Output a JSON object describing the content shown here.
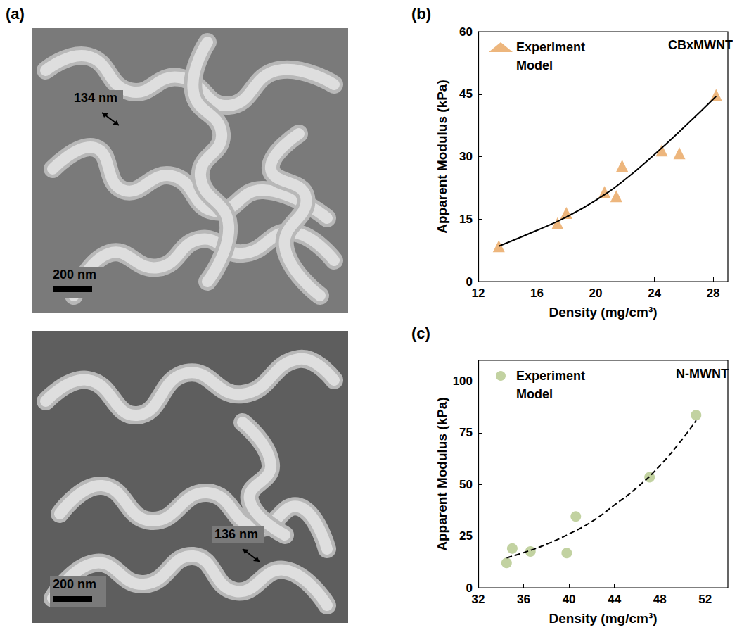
{
  "panels": [
    {
      "panel_label": "(a)",
      "images": [
        {
          "annotation": "134 nm",
          "scale_bar": "200 nm"
        },
        {
          "annotation": "136 nm",
          "scale_bar": "200 nm"
        }
      ]
    }
  ],
  "chart_data": [
    {
      "panel_label": "(b)",
      "type": "scatter",
      "annotation": "CBxMWNT",
      "x_label": "Density (mg/cm³)",
      "y_label": "Apparent Modulus (kPa)",
      "xlim": [
        12,
        29
      ],
      "xticks": [
        12,
        16,
        20,
        24,
        28
      ],
      "ylim": [
        0,
        60
      ],
      "yticks": [
        0,
        15,
        30,
        45,
        60
      ],
      "grid": false,
      "legend": "top-left",
      "series": [
        {
          "name": "Experiment",
          "type": "scatter",
          "marker": "triangle",
          "color": "#e8a45c",
          "x": [
            13.4,
            17.4,
            18.0,
            20.6,
            21.4,
            21.8,
            24.5,
            25.7,
            28.2
          ],
          "values": [
            8.5,
            14,
            16.5,
            21.5,
            20.5,
            27.8,
            31.5,
            30.8,
            44.8
          ]
        },
        {
          "name": "Model",
          "type": "line",
          "line_style": "solid",
          "color": "#000000",
          "x": [
            13.4,
            16,
            18,
            20,
            22,
            24,
            26,
            28.2
          ],
          "values": [
            8.5,
            12.3,
            15.5,
            19.5,
            24.5,
            30.5,
            37,
            44.5
          ]
        }
      ]
    },
    {
      "panel_label": "(c)",
      "type": "scatter",
      "annotation": "N-MWNT",
      "x_label": "Density (mg/cm³)",
      "y_label": "Apparent Modulus (kPa)",
      "xlim": [
        32,
        54
      ],
      "xticks": [
        32,
        36,
        40,
        44,
        48,
        52
      ],
      "ylim": [
        0,
        110
      ],
      "yticks": [
        0,
        25,
        50,
        75,
        100
      ],
      "grid": false,
      "legend": "top-left",
      "series": [
        {
          "name": "Experiment",
          "type": "scatter",
          "marker": "circle",
          "color": "#b3c78a",
          "x": [
            34.5,
            35.0,
            36.6,
            39.8,
            40.6,
            47.1,
            51.2
          ],
          "values": [
            12,
            19,
            17.5,
            16.8,
            34.5,
            53.5,
            83.5
          ]
        },
        {
          "name": "Model",
          "type": "line",
          "line_style": "dashed",
          "color": "#000000",
          "x": [
            34.5,
            36,
            38,
            40,
            42,
            44,
            46,
            48,
            50,
            51.2
          ],
          "values": [
            14.5,
            17,
            21,
            26,
            32,
            40,
            48.5,
            59,
            72,
            81
          ]
        }
      ]
    }
  ]
}
